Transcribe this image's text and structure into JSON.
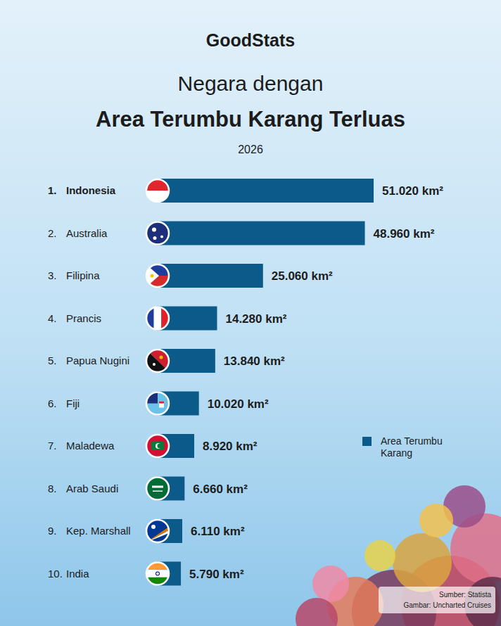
{
  "chart_data": {
    "type": "bar",
    "orientation": "horizontal",
    "brand": "GoodStats",
    "title": [
      "Negara dengan",
      "Area Terumbu Karang Terluas"
    ],
    "subtitle": "2026",
    "ranks": [
      "1.",
      "2.",
      "3.",
      "4.",
      "5.",
      "6.",
      "7.",
      "8.",
      "9.",
      "10."
    ],
    "categories": [
      "Indonesia",
      "Australia",
      "Filipina",
      "Prancis",
      "Papua Nugini",
      "Fiji",
      "Maladewa",
      "Arab Saudi",
      "Kep. Marshall",
      "India"
    ],
    "series": [
      {
        "name": "Area Terumbu Karang",
        "color": "#0b5a89",
        "values": [
          51020,
          48960,
          25060,
          14280,
          13840,
          10020,
          8920,
          6660,
          6110,
          5790
        ],
        "value_labels": [
          "51.020 km²",
          "48.960 km²",
          "25.060 km²",
          "14.280 km²",
          "13.840 km²",
          "10.020 km²",
          "8.920 km²",
          "6.660 km²",
          "6.110 km²",
          "5.790 km²"
        ]
      }
    ],
    "xlim": [
      0,
      51020
    ],
    "data_labels": true,
    "tick_labels": false,
    "grid": false,
    "legend": "right",
    "source": "Sumber: Statista",
    "image_credit": "Gambar: Uncharted Cruises"
  }
}
